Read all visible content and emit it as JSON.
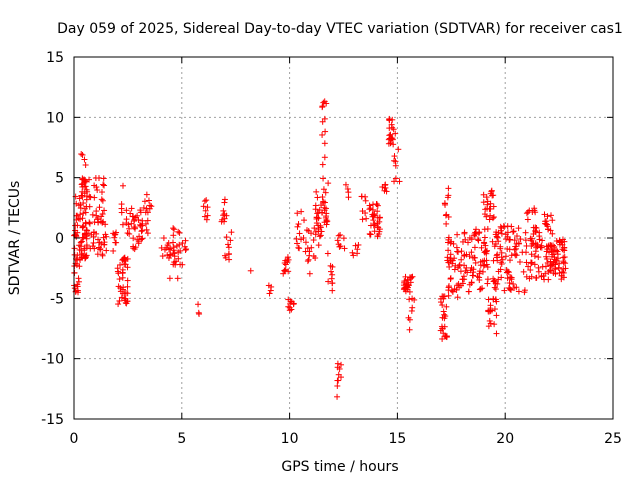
{
  "chart_data": {
    "type": "scatter",
    "title": "Day 059 of 2025, Sidereal Day-to-day VTEC variation (SDTVAR) for receiver cas1",
    "xlabel": "GPS time / hours",
    "ylabel": "SDTVAR / TECUs",
    "xlim": [
      0,
      25
    ],
    "ylim": [
      -15,
      15
    ],
    "xticks": [
      0,
      5,
      10,
      15,
      20,
      25
    ],
    "yticks": [
      -15,
      -10,
      -5,
      0,
      5,
      10,
      15
    ],
    "xtick_labels": [
      "0",
      "5",
      "10",
      "15",
      "20",
      "25"
    ],
    "ytick_labels": [
      "-15",
      "-10",
      "-5",
      "0",
      "5",
      "10",
      "15"
    ],
    "grid": true,
    "marker": "plus",
    "color": "#ff0000",
    "series": [
      {
        "name": "SDTVAR",
        "clusters": [
          {
            "x0": 0.0,
            "x1": 0.3,
            "ymin": -4.8,
            "ymax": 3.5,
            "n": 45
          },
          {
            "x0": 0.3,
            "x1": 0.6,
            "ymin": -2.0,
            "ymax": 7.2,
            "n": 55
          },
          {
            "x0": 0.5,
            "x1": 1.5,
            "ymin": -2.0,
            "ymax": 5.0,
            "n": 70
          },
          {
            "x0": 1.8,
            "x1": 2.0,
            "ymin": -1.5,
            "ymax": 0.5,
            "n": 8
          },
          {
            "x0": 2.0,
            "x1": 2.5,
            "ymin": -5.5,
            "ymax": -1.5,
            "n": 40
          },
          {
            "x0": 2.2,
            "x1": 2.3,
            "ymin": 1.0,
            "ymax": 4.8,
            "n": 5
          },
          {
            "x0": 2.4,
            "x1": 3.2,
            "ymin": -1.0,
            "ymax": 2.5,
            "n": 40
          },
          {
            "x0": 3.2,
            "x1": 3.6,
            "ymin": 0.0,
            "ymax": 3.8,
            "n": 14
          },
          {
            "x0": 4.0,
            "x1": 4.5,
            "ymin": -1.5,
            "ymax": 0.0,
            "n": 10
          },
          {
            "x0": 4.4,
            "x1": 5.2,
            "ymin": -3.5,
            "ymax": 1.0,
            "n": 32
          },
          {
            "x0": 5.7,
            "x1": 5.9,
            "ymin": -7.0,
            "ymax": -5.2,
            "n": 3
          },
          {
            "x0": 6.0,
            "x1": 6.3,
            "ymin": 1.5,
            "ymax": 3.2,
            "n": 8
          },
          {
            "x0": 6.8,
            "x1": 7.1,
            "ymin": 0.5,
            "ymax": 3.8,
            "n": 10
          },
          {
            "x0": 7.0,
            "x1": 7.3,
            "ymin": -2.0,
            "ymax": 0.5,
            "n": 10
          },
          {
            "x0": 8.1,
            "x1": 8.2,
            "ymin": -2.9,
            "ymax": -2.7,
            "n": 1
          },
          {
            "x0": 9.0,
            "x1": 9.2,
            "ymin": -5.0,
            "ymax": -3.8,
            "n": 4
          },
          {
            "x0": 9.7,
            "x1": 10.0,
            "ymin": -3.0,
            "ymax": -1.5,
            "n": 12
          },
          {
            "x0": 9.9,
            "x1": 10.2,
            "ymin": -6.0,
            "ymax": -5.0,
            "n": 10
          },
          {
            "x0": 10.3,
            "x1": 10.7,
            "ymin": -1.0,
            "ymax": 2.2,
            "n": 12
          },
          {
            "x0": 10.7,
            "x1": 11.2,
            "ymin": -3.5,
            "ymax": 1.0,
            "n": 16
          },
          {
            "x0": 11.2,
            "x1": 11.5,
            "ymin": -1.0,
            "ymax": 4.0,
            "n": 25
          },
          {
            "x0": 11.5,
            "x1": 11.8,
            "ymin": 1.0,
            "ymax": 5.0,
            "n": 20
          },
          {
            "x0": 11.5,
            "x1": 11.7,
            "ymin": 6.0,
            "ymax": 12.3,
            "n": 12
          },
          {
            "x0": 11.6,
            "x1": 12.0,
            "ymin": -4.5,
            "ymax": -1.0,
            "n": 10
          },
          {
            "x0": 12.2,
            "x1": 12.4,
            "ymin": -13.5,
            "ymax": -9.5,
            "n": 10
          },
          {
            "x0": 12.2,
            "x1": 12.6,
            "ymin": -1.0,
            "ymax": 0.5,
            "n": 8
          },
          {
            "x0": 12.6,
            "x1": 12.8,
            "ymin": 3.0,
            "ymax": 4.5,
            "n": 4
          },
          {
            "x0": 12.9,
            "x1": 13.2,
            "ymin": -2.0,
            "ymax": 0.0,
            "n": 6
          },
          {
            "x0": 13.3,
            "x1": 13.6,
            "ymin": 1.0,
            "ymax": 3.5,
            "n": 8
          },
          {
            "x0": 13.7,
            "x1": 14.2,
            "ymin": 0.0,
            "ymax": 3.0,
            "n": 35
          },
          {
            "x0": 14.3,
            "x1": 14.5,
            "ymin": 3.8,
            "ymax": 4.5,
            "n": 6
          },
          {
            "x0": 14.6,
            "x1": 14.9,
            "ymin": 7.5,
            "ymax": 10.0,
            "n": 20
          },
          {
            "x0": 14.8,
            "x1": 15.1,
            "ymin": 4.0,
            "ymax": 7.5,
            "n": 8
          },
          {
            "x0": 15.3,
            "x1": 15.7,
            "ymin": -4.5,
            "ymax": -3.2,
            "n": 25
          },
          {
            "x0": 15.5,
            "x1": 15.8,
            "ymin": -7.8,
            "ymax": -5.0,
            "n": 8
          },
          {
            "x0": 17.0,
            "x1": 17.3,
            "ymin": -8.5,
            "ymax": -4.8,
            "n": 25
          },
          {
            "x0": 17.2,
            "x1": 17.4,
            "ymin": 1.0,
            "ymax": 4.4,
            "n": 10
          },
          {
            "x0": 17.3,
            "x1": 18.5,
            "ymin": -5.0,
            "ymax": 0.5,
            "n": 75
          },
          {
            "x0": 18.5,
            "x1": 19.2,
            "ymin": -4.5,
            "ymax": 1.0,
            "n": 50
          },
          {
            "x0": 19.0,
            "x1": 19.5,
            "ymin": 1.5,
            "ymax": 4.0,
            "n": 22
          },
          {
            "x0": 19.2,
            "x1": 19.6,
            "ymin": -8.0,
            "ymax": -5.0,
            "n": 20
          },
          {
            "x0": 19.4,
            "x1": 21.0,
            "ymin": -4.5,
            "ymax": 1.0,
            "n": 95
          },
          {
            "x0": 21.0,
            "x1": 21.5,
            "ymin": 1.5,
            "ymax": 2.5,
            "n": 8
          },
          {
            "x0": 21.0,
            "x1": 22.2,
            "ymin": -3.5,
            "ymax": 1.0,
            "n": 70
          },
          {
            "x0": 21.8,
            "x1": 22.2,
            "ymin": 1.0,
            "ymax": 2.0,
            "n": 10
          },
          {
            "x0": 22.0,
            "x1": 22.8,
            "ymin": -3.5,
            "ymax": 0.0,
            "n": 60
          }
        ]
      }
    ]
  }
}
